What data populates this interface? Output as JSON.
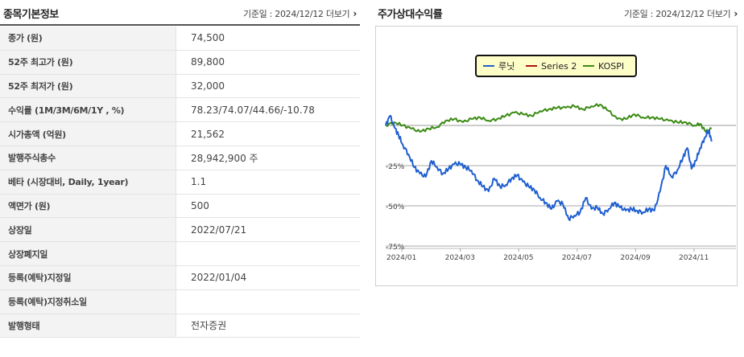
{
  "left": {
    "title": "종목기본정보",
    "base_date_label": "기준일 : 2024/12/12",
    "more_label": "더보기",
    "rows": [
      {
        "label": "종가 (원)",
        "value": "74,500"
      },
      {
        "label": "52주 최고가 (원)",
        "value": "89,800"
      },
      {
        "label": "52주 최저가 (원)",
        "value": "32,000"
      },
      {
        "label": "수익률 (1M/3M/6M/1Y , %)",
        "value": "78.23/74.07/44.66/-10.78"
      },
      {
        "label": "시가총액 (억원)",
        "value": "21,562"
      },
      {
        "label": "발행주식총수",
        "value": "28,942,900 주"
      },
      {
        "label": "베타 (시장대비, Daily, 1year)",
        "value": "1.1"
      },
      {
        "label": "액면가 (원)",
        "value": "500"
      },
      {
        "label": "상장일",
        "value": "2022/07/21"
      },
      {
        "label": "상장폐지일",
        "value": ""
      },
      {
        "label": "등록(예탁)지정일",
        "value": "2022/01/04"
      },
      {
        "label": "등록(예탁)지정취소일",
        "value": ""
      },
      {
        "label": "발행형태",
        "value": "전자증권"
      }
    ]
  },
  "right": {
    "title": "주가상대수익률",
    "base_date_label": "기준일 : 2024/12/12",
    "more_label": "더보기"
  },
  "colors": {
    "lunit": "#1f5fd0",
    "series2": "#b01010",
    "kospi": "#3a8a12",
    "legend_bg": "#fdfdc8"
  },
  "chart_data": {
    "type": "line",
    "x_tick_labels": [
      "2024/01",
      "2024/03",
      "2024/05",
      "2024/07",
      "2024/09",
      "2024/11"
    ],
    "y_tick_labels": [
      "-25%",
      "-50%",
      "-75%"
    ],
    "y_ticks": [
      -25,
      -50,
      -75
    ],
    "xlim": [
      0,
      11.4
    ],
    "ylim": [
      -80,
      12
    ],
    "legend": [
      "루닛",
      "Series 2",
      "KOSPI"
    ],
    "legend_position": "top-center",
    "series": [
      {
        "name": "루닛",
        "x": [
          0.0,
          0.15,
          0.3,
          0.45,
          0.6,
          0.8,
          1.0,
          1.2,
          1.4,
          1.6,
          1.8,
          2.0,
          2.2,
          2.4,
          2.6,
          2.8,
          3.0,
          3.2,
          3.4,
          3.6,
          3.8,
          4.0,
          4.2,
          4.4,
          4.6,
          4.8,
          5.0,
          5.2,
          5.4,
          5.6,
          5.8,
          6.0,
          6.2,
          6.4,
          6.6,
          6.8,
          7.0,
          7.2,
          7.4,
          7.6,
          7.8,
          8.0,
          8.2,
          8.4,
          8.6,
          8.8,
          9.0,
          9.2,
          9.4,
          9.6,
          9.8,
          10.0,
          10.2,
          10.4,
          10.55,
          10.7,
          10.85,
          11.0,
          11.15,
          11.3,
          11.4
        ],
        "values": [
          0,
          6,
          -1,
          -6,
          -12,
          -18,
          -26,
          -30,
          -32,
          -22,
          -26,
          -30,
          -27,
          -24,
          -24,
          -26,
          -28,
          -34,
          -38,
          -41,
          -33,
          -38,
          -37,
          -33,
          -31,
          -35,
          -38,
          -40,
          -45,
          -48,
          -52,
          -47,
          -49,
          -58,
          -56,
          -54,
          -45,
          -52,
          -51,
          -55,
          -52,
          -48,
          -51,
          -53,
          -52,
          -53,
          -54,
          -52,
          -53,
          -41,
          -25,
          -32,
          -28,
          -20,
          -14,
          -27,
          -22,
          -14,
          -8,
          -3,
          -10
        ]
      },
      {
        "name": "Series 2",
        "x": [],
        "values": []
      },
      {
        "name": "KOSPI",
        "x": [
          0.0,
          0.3,
          0.6,
          0.9,
          1.2,
          1.5,
          1.8,
          2.1,
          2.4,
          2.7,
          3.0,
          3.3,
          3.6,
          3.9,
          4.2,
          4.5,
          4.8,
          5.1,
          5.4,
          5.7,
          6.0,
          6.3,
          6.6,
          6.9,
          7.2,
          7.5,
          7.8,
          8.1,
          8.4,
          8.7,
          9.0,
          9.3,
          9.6,
          9.9,
          10.2,
          10.5,
          10.8,
          11.0,
          11.2,
          11.4
        ],
        "values": [
          0,
          2,
          0,
          -2,
          -4,
          -2,
          -1,
          3,
          4,
          2,
          4,
          5,
          3,
          4,
          6,
          8,
          7,
          6,
          9,
          10,
          11,
          11,
          12,
          10,
          12,
          13,
          9,
          4,
          4,
          7,
          5,
          5,
          4,
          3,
          2,
          2,
          0,
          1,
          -4,
          -2
        ]
      }
    ]
  }
}
